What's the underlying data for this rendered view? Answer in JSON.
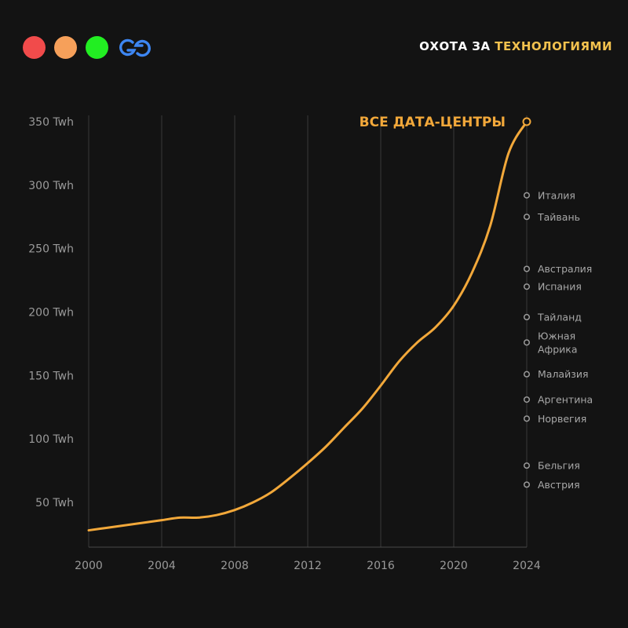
{
  "header": {
    "brand_part1": "ОХОТА ЗА ",
    "brand_part2": "ТЕХНОЛОГИЯМИ",
    "traffic_colors": [
      "#f14b4b",
      "#f6a05a",
      "#22ee22"
    ],
    "logo_color": "#3d86f2",
    "logo_icon": "gg-logo-icon"
  },
  "chart_data": {
    "type": "line",
    "title": "",
    "xlabel": "",
    "ylabel": "",
    "xlim": [
      2000,
      2024
    ],
    "ylim": [
      20,
      350
    ],
    "x_ticks": [
      "2000",
      "2004",
      "2008",
      "2012",
      "2016",
      "2020",
      "2024"
    ],
    "y_ticks": [
      "50 Twh",
      "100 Twh",
      "150 Twh",
      "200 Twh",
      "250 Twh",
      "300 Twh",
      "350 Twh"
    ],
    "series": [
      {
        "name": "ВСЕ ДАТА-ЦЕНТРЫ",
        "color": "#f2a83a",
        "x": [
          2000,
          2001,
          2002,
          2003,
          2004,
          2005,
          2006,
          2007,
          2008,
          2009,
          2010,
          2011,
          2012,
          2013,
          2014,
          2015,
          2016,
          2017,
          2018,
          2019,
          2020,
          2021,
          2022,
          2023,
          2024
        ],
        "y": [
          28,
          30,
          32,
          34,
          36,
          38,
          38,
          40,
          44,
          50,
          58,
          69,
          81,
          94,
          109,
          124,
          142,
          161,
          176,
          188,
          205,
          231,
          268,
          325,
          350
        ]
      }
    ],
    "comparisons": [
      {
        "name": "Италия",
        "value": 292
      },
      {
        "name": "Тайвань",
        "value": 275
      },
      {
        "name": "Австралия",
        "value": 234
      },
      {
        "name": "Испания",
        "value": 220
      },
      {
        "name": "Тайланд",
        "value": 196
      },
      {
        "name": "Южная Африка",
        "line1": "Южная",
        "line2": "Африка",
        "value": 176
      },
      {
        "name": "Малайзия",
        "value": 151
      },
      {
        "name": "Аргентина",
        "value": 131
      },
      {
        "name": "Норвегия",
        "value": 116
      },
      {
        "name": "Бельгия",
        "value": 79
      },
      {
        "name": "Австрия",
        "value": 64
      }
    ]
  }
}
